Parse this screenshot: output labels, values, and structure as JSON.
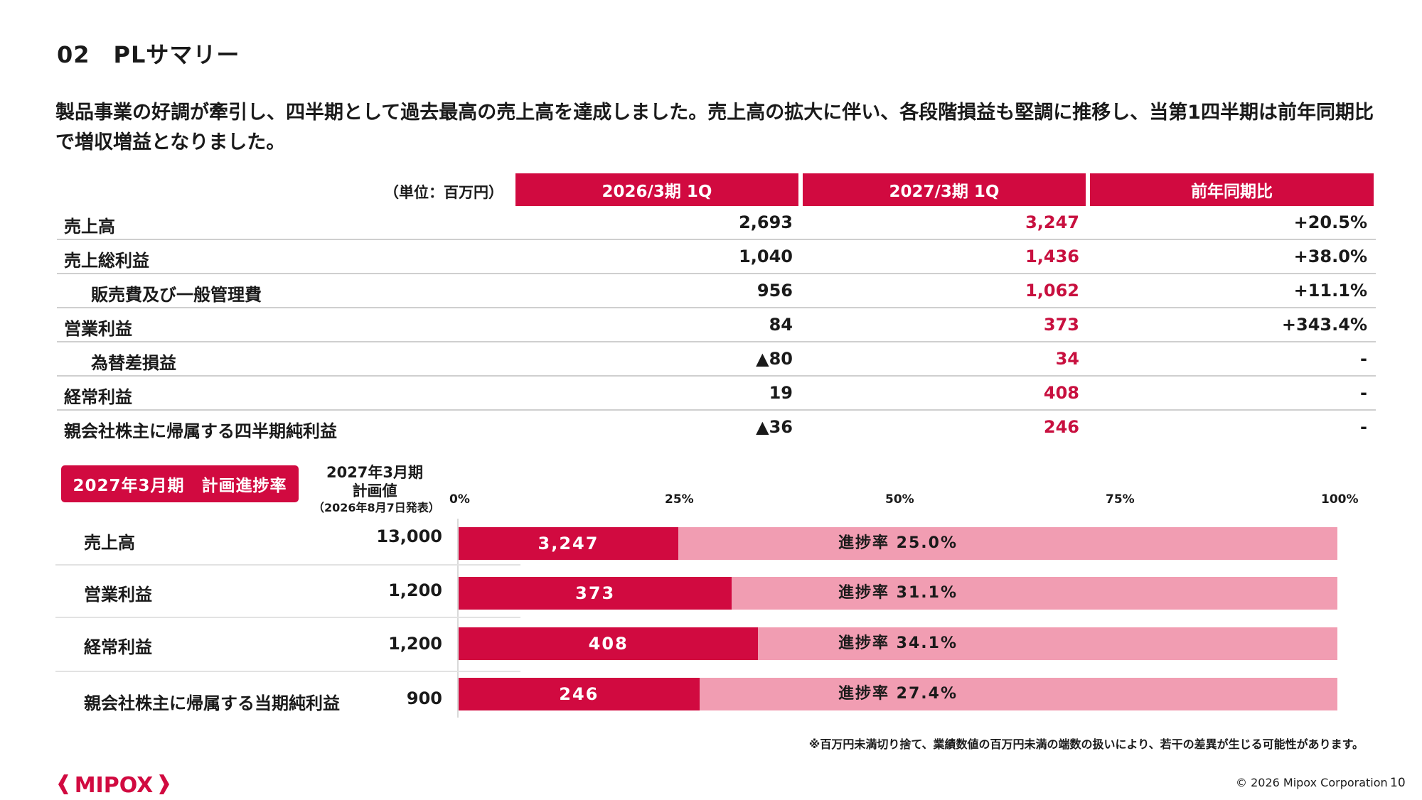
{
  "page": {
    "title": "02　PLサマリー",
    "lead": "製品事業の好調が牽引し、四半期として過去最高の売上高を達成しました。売上高の拡大に伴い、各段階損益も堅調に推移し、当第1四半期は前年同期比で増収増益となりました。"
  },
  "pl": {
    "unit": "（単位：百万円）",
    "columns": [
      "2026/3期 1Q",
      "2027/3期 1Q",
      "前年同期比"
    ],
    "rows": [
      {
        "label": "売上高",
        "v1": "2,693",
        "v2": "3,247",
        "v3": "+20.5%"
      },
      {
        "label": "売上総利益",
        "v1": "1,040",
        "v2": "1,436",
        "v3": "+38.0%"
      },
      {
        "label": "販売費及び一般管理費",
        "v1": "956",
        "v2": "1,062",
        "v3": "+11.1%"
      },
      {
        "label": "営業利益",
        "v1": "84",
        "v2": "373",
        "v3": "+343.4%"
      },
      {
        "label": "為替差損益",
        "v1": "▲80",
        "v2": "34",
        "v3": "-"
      },
      {
        "label": "経常利益",
        "v1": "19",
        "v2": "408",
        "v3": "-"
      },
      {
        "label": "親会社株主に帰属する四半期純利益",
        "v1": "▲36",
        "v2": "246",
        "v3": "-"
      }
    ]
  },
  "progress": {
    "badge": "2027年3月期　計画進捗率",
    "plan_head_1": "2027年3月期",
    "plan_head_2": "計画値",
    "plan_head_3": "（2026年8月7日発表）",
    "axis": [
      "0%",
      "25%",
      "50%",
      "75%",
      "100%"
    ],
    "rows": [
      {
        "label": "売上高",
        "plan": "13,000",
        "actual": "3,247",
        "rate_text": "進捗率 25.0%",
        "rate": 0.25
      },
      {
        "label": "営業利益",
        "plan": "1,200",
        "actual": "373",
        "rate_text": "進捗率 31.1%",
        "rate": 0.311
      },
      {
        "label": "経常利益",
        "plan": "1,200",
        "actual": "408",
        "rate_text": "進捗率 34.1%",
        "rate": 0.341
      },
      {
        "label": "親会社株主に帰属する当期純利益",
        "plan": "900",
        "actual": "246",
        "rate_text": "進捗率 27.4%",
        "rate": 0.274
      }
    ]
  },
  "note": "※百万円未満切り捨て、業績数値の百万円未満の端数の扱いにより、若干の差異が生じる可能性があります。",
  "footer": {
    "logo_text": "MIPOX",
    "copyright": "© 2026 Mipox Corporation",
    "page_number": "10"
  },
  "colors": {
    "accent": "#d10a40",
    "accent_light": "#f19db2",
    "value_red": "#c8103f"
  }
}
